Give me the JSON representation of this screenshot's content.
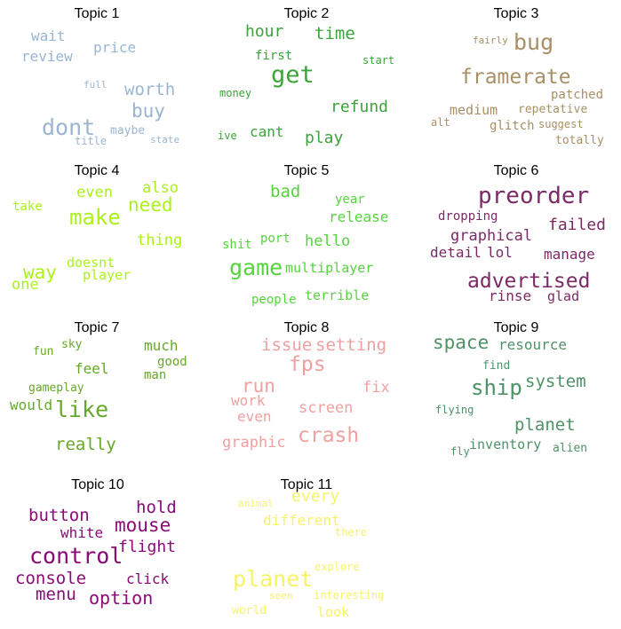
{
  "chart_data": {
    "type": "wordcloud",
    "panels": [
      {
        "title": "Topic 1",
        "color": "#9ab5d2",
        "words": [
          {
            "text": "wait",
            "size": 16
          },
          {
            "text": "price",
            "size": 16
          },
          {
            "text": "review",
            "size": 16
          },
          {
            "text": "full",
            "size": 11
          },
          {
            "text": "worth",
            "size": 19
          },
          {
            "text": "buy",
            "size": 21
          },
          {
            "text": "dont",
            "size": 25
          },
          {
            "text": "maybe",
            "size": 13
          },
          {
            "text": "title",
            "size": 12
          },
          {
            "text": "state",
            "size": 11
          }
        ]
      },
      {
        "title": "Topic 2",
        "color": "#3aa43a",
        "words": [
          {
            "text": "hour",
            "size": 18
          },
          {
            "text": "time",
            "size": 19
          },
          {
            "text": "first",
            "size": 14
          },
          {
            "text": "get",
            "size": 27
          },
          {
            "text": "start",
            "size": 12
          },
          {
            "text": "money",
            "size": 12
          },
          {
            "text": "refund",
            "size": 18
          },
          {
            "text": "cant",
            "size": 16
          },
          {
            "text": "play",
            "size": 18
          },
          {
            "text": "ive",
            "size": 12
          }
        ]
      },
      {
        "title": "Topic 3",
        "color": "#a89066",
        "words": [
          {
            "text": "fairly",
            "size": 11
          },
          {
            "text": "bug",
            "size": 25
          },
          {
            "text": "framerate",
            "size": 23
          },
          {
            "text": "patched",
            "size": 14
          },
          {
            "text": "medium",
            "size": 15
          },
          {
            "text": "repetative",
            "size": 13
          },
          {
            "text": "alt",
            "size": 12
          },
          {
            "text": "glitch",
            "size": 14
          },
          {
            "text": "suggest",
            "size": 12
          },
          {
            "text": "totally",
            "size": 13
          }
        ]
      },
      {
        "title": "Topic 4",
        "color": "#a9f21a",
        "words": [
          {
            "text": "even",
            "size": 17
          },
          {
            "text": "also",
            "size": 17
          },
          {
            "text": "take",
            "size": 14
          },
          {
            "text": "make",
            "size": 24
          },
          {
            "text": "need",
            "size": 21
          },
          {
            "text": "thing",
            "size": 17
          },
          {
            "text": "doesnt",
            "size": 15
          },
          {
            "text": "way",
            "size": 21
          },
          {
            "text": "player",
            "size": 15
          },
          {
            "text": "one",
            "size": 17
          }
        ]
      },
      {
        "title": "Topic 5",
        "color": "#55d43d",
        "words": [
          {
            "text": "bad",
            "size": 19
          },
          {
            "text": "year",
            "size": 14
          },
          {
            "text": "release",
            "size": 16
          },
          {
            "text": "port",
            "size": 14
          },
          {
            "text": "hello",
            "size": 17
          },
          {
            "text": "shit",
            "size": 14
          },
          {
            "text": "game",
            "size": 25
          },
          {
            "text": "multiplayer",
            "size": 15
          },
          {
            "text": "terrible",
            "size": 15
          },
          {
            "text": "people",
            "size": 14
          }
        ]
      },
      {
        "title": "Topic 6",
        "color": "#7a2a66",
        "words": [
          {
            "text": "preorder",
            "size": 26
          },
          {
            "text": "dropping",
            "size": 14
          },
          {
            "text": "failed",
            "size": 18
          },
          {
            "text": "graphical",
            "size": 17
          },
          {
            "text": "detail",
            "size": 16
          },
          {
            "text": "lol",
            "size": 16
          },
          {
            "text": "manage",
            "size": 16
          },
          {
            "text": "advertised",
            "size": 23
          },
          {
            "text": "rinse",
            "size": 16
          },
          {
            "text": "glad",
            "size": 15
          }
        ]
      },
      {
        "title": "Topic 7",
        "color": "#66a828",
        "words": [
          {
            "text": "sky",
            "size": 13
          },
          {
            "text": "fun",
            "size": 13
          },
          {
            "text": "much",
            "size": 16
          },
          {
            "text": "good",
            "size": 14
          },
          {
            "text": "feel",
            "size": 16
          },
          {
            "text": "man",
            "size": 14
          },
          {
            "text": "gameplay",
            "size": 13
          },
          {
            "text": "would",
            "size": 16
          },
          {
            "text": "like",
            "size": 25
          },
          {
            "text": "really",
            "size": 19
          }
        ]
      },
      {
        "title": "Topic 8",
        "color": "#f0a0a0",
        "words": [
          {
            "text": "issue",
            "size": 19
          },
          {
            "text": "setting",
            "size": 19
          },
          {
            "text": "fps",
            "size": 23
          },
          {
            "text": "run",
            "size": 21
          },
          {
            "text": "fix",
            "size": 17
          },
          {
            "text": "work",
            "size": 16
          },
          {
            "text": "screen",
            "size": 17
          },
          {
            "text": "even",
            "size": 16
          },
          {
            "text": "crash",
            "size": 23
          },
          {
            "text": "graphic",
            "size": 17
          }
        ]
      },
      {
        "title": "Topic 9",
        "color": "#4e9266",
        "words": [
          {
            "text": "space",
            "size": 21
          },
          {
            "text": "resource",
            "size": 16
          },
          {
            "text": "find",
            "size": 13
          },
          {
            "text": "ship",
            "size": 24
          },
          {
            "text": "system",
            "size": 19
          },
          {
            "text": "flying",
            "size": 12
          },
          {
            "text": "planet",
            "size": 19
          },
          {
            "text": "inventory",
            "size": 15
          },
          {
            "text": "alien",
            "size": 13
          },
          {
            "text": "fly",
            "size": 12
          }
        ]
      },
      {
        "title": "Topic 10",
        "color": "#8b0a78",
        "words": [
          {
            "text": "button",
            "size": 19
          },
          {
            "text": "hold",
            "size": 19
          },
          {
            "text": "white",
            "size": 16
          },
          {
            "text": "mouse",
            "size": 21
          },
          {
            "text": "control",
            "size": 25
          },
          {
            "text": "flight",
            "size": 18
          },
          {
            "text": "console",
            "size": 19
          },
          {
            "text": "click",
            "size": 16
          },
          {
            "text": "menu",
            "size": 19
          },
          {
            "text": "option",
            "size": 20
          }
        ]
      },
      {
        "title": "Topic 11",
        "color": "#f6f26a",
        "words": [
          {
            "text": "animal",
            "size": 11
          },
          {
            "text": "every",
            "size": 18
          },
          {
            "text": "different",
            "size": 16
          },
          {
            "text": "there",
            "size": 12
          },
          {
            "text": "explore",
            "size": 12
          },
          {
            "text": "planet",
            "size": 25
          },
          {
            "text": "seen",
            "size": 11
          },
          {
            "text": "interesting",
            "size": 12
          },
          {
            "text": "world",
            "size": 13
          },
          {
            "text": "look",
            "size": 15
          }
        ]
      }
    ]
  }
}
